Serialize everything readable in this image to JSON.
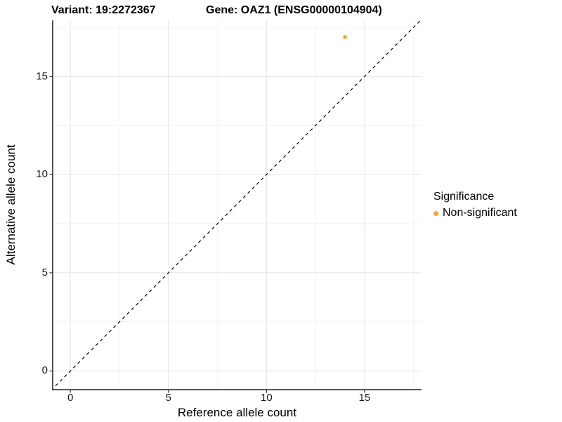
{
  "header": {
    "variant_title": "Variant: 19:2272367",
    "gene_title": "Gene: OAZ1 (ENSG00000104904)"
  },
  "chart_data": {
    "type": "scatter",
    "title": "Variant: 19:2272367   Gene: OAZ1 (ENSG00000104904)",
    "xlabel": "Reference allele count",
    "ylabel": "Alternative allele count",
    "xlim": [
      -0.9,
      17.9
    ],
    "ylim": [
      -0.95,
      17.85
    ],
    "x_ticks": [
      0,
      5,
      10,
      15
    ],
    "y_ticks": [
      0,
      5,
      10,
      15
    ],
    "x_minor_ticks": [
      2.5,
      7.5,
      12.5,
      17.5
    ],
    "y_minor_ticks": [
      2.5,
      7.5,
      12.5,
      17.5
    ],
    "grid": true,
    "points": [
      {
        "x": 14,
        "y": 17,
        "series": "Non-significant"
      }
    ],
    "abline": {
      "slope": 1,
      "intercept": 0,
      "style": "dashed",
      "color": "#111111"
    },
    "legend": {
      "title": "Significance",
      "position": "right",
      "entries": [
        {
          "label": "Non-significant",
          "color": "#FAA43A"
        }
      ]
    },
    "colors": {
      "point": "#FAA43A",
      "major_grid": "#E7E7E7",
      "minor_grid": "#F3F3F3",
      "axis_line": "#404040",
      "tick_mark": "#333333"
    }
  }
}
